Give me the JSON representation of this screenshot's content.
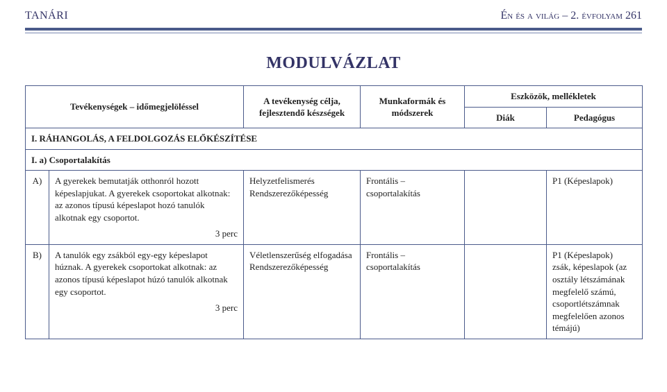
{
  "header": {
    "left": "TANÁRI",
    "right_sc": "Én és a világ – 2. évfolyam",
    "right_page": " 261"
  },
  "title": "MODULVÁZLAT",
  "colors": {
    "border": "#4a5a8a",
    "heading": "#333366",
    "rule": "#4a5a8a"
  },
  "tableHead": {
    "activities": "Tevékenységek – időmegjelöléssel",
    "objectives": "A tevékenység célja, fejlesztendő készségek",
    "methods": "Munkaformák és módszerek",
    "tools_group": "Eszközök, mellékletek",
    "tools_student": "Diák",
    "tools_teacher": "Pedagógus"
  },
  "section1": "I. RÁHANGOLÁS, A FELDOLGOZÁS ELŐKÉSZÍTÉSE",
  "section1a": "I. a) Csoportalakítás",
  "rows": [
    {
      "letter": "A)",
      "activity": "A gyerekek bemutatják otthonról hozott képeslapjukat. A gyerekek csoportokat alkotnak: az azonos típusú képeslapot hozó tanulók alkotnak egy csoportot.",
      "duration": "3 perc",
      "objectives": "Helyzetfelismerés\nRendszerezőképesség",
      "methods": "Frontális – csoportalakítás",
      "student": "",
      "teacher": "P1 (Képeslapok)"
    },
    {
      "letter": "B)",
      "activity": "A tanulók egy zsákból egy-egy képeslapot húznak. A gyerekek csoportokat alkotnak: az azonos típusú képeslapot húzó tanulók alkotnak egy csoportot.",
      "duration": "3 perc",
      "objectives": "Véletlenszerűség elfogadása\nRendszerezőképesség",
      "methods": "Frontális – csoportalakítás",
      "student": "",
      "teacher": "P1 (Képeslapok)\nzsák, képeslapok (az osztály létszámának megfelelő számú, csoportlétszámnak megfelelően azonos témájú)"
    }
  ]
}
